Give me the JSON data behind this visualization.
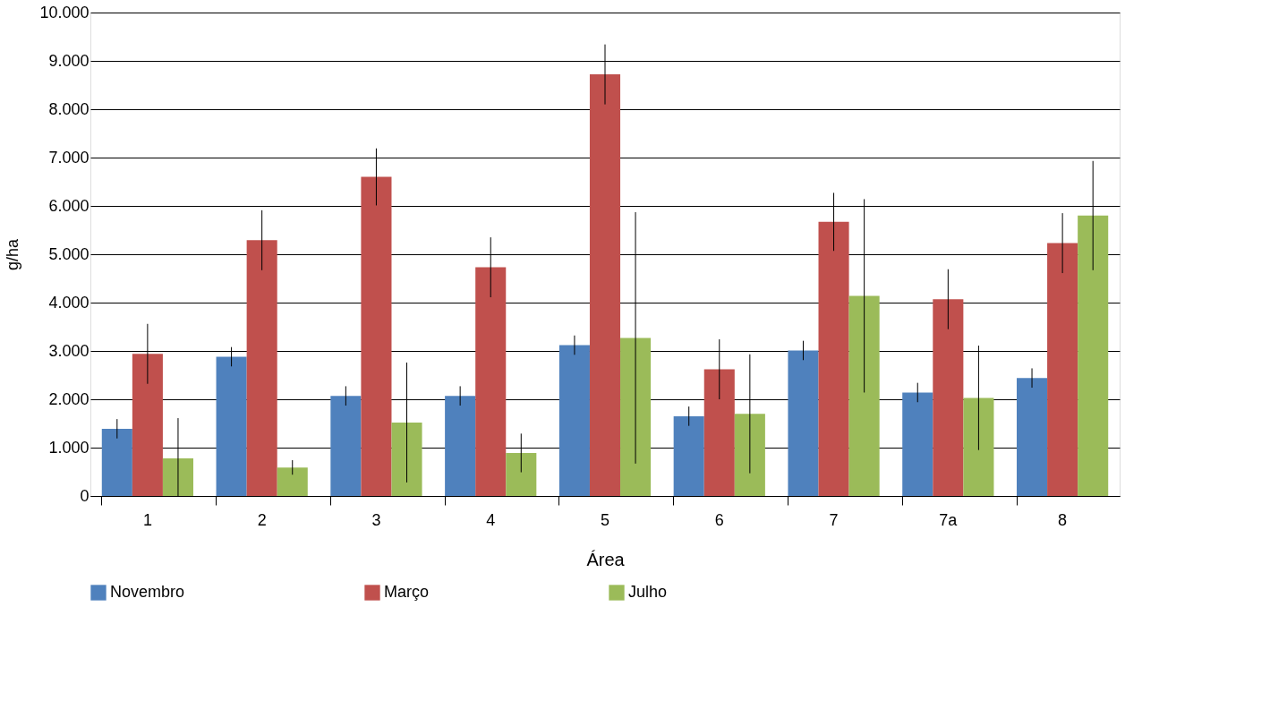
{
  "chart_data": {
    "type": "bar",
    "xlabel": "Área",
    "ylabel": "g/ha",
    "categories": [
      "1",
      "2",
      "3",
      "4",
      "5",
      "6",
      "7",
      "7a",
      "8"
    ],
    "series": [
      {
        "name": "Novembro",
        "color": "#4f81bd",
        "values": [
          1390,
          2880,
          2070,
          2070,
          3120,
          1650,
          3010,
          2140,
          2440
        ],
        "errors": [
          200,
          200,
          200,
          200,
          200,
          200,
          200,
          200,
          200
        ]
      },
      {
        "name": "Março",
        "color": "#c0504d",
        "values": [
          2940,
          5290,
          6600,
          4730,
          8720,
          2620,
          5670,
          4070,
          5230
        ],
        "errors": [
          620,
          620,
          590,
          620,
          620,
          620,
          600,
          620,
          620
        ]
      },
      {
        "name": "Julho",
        "color": "#9bbb59",
        "values": [
          780,
          590,
          1520,
          890,
          3270,
          1700,
          4140,
          2030,
          5800
        ],
        "errors": [
          [
            0,
            1610
          ],
          150,
          1240,
          400,
          2600,
          1230,
          2000,
          1080,
          1130
        ]
      }
    ],
    "ylim": [
      0,
      10000
    ],
    "yticks": [
      0,
      {
        "value": 1000,
        "label": "1.000"
      },
      {
        "value": 2000,
        "label": "2.000"
      },
      {
        "value": 3000,
        "label": "3.000"
      },
      {
        "value": 4000,
        "label": "4.000"
      },
      {
        "value": 5000,
        "label": "5.000"
      },
      {
        "value": 6000,
        "label": "6.000"
      },
      {
        "value": 7000,
        "label": "7.000"
      },
      {
        "value": 8000,
        "label": "8.000"
      },
      {
        "value": 9000,
        "label": "9.000"
      },
      {
        "value": 10000,
        "label": "10.000"
      }
    ],
    "grid": "y",
    "legend": "bottom"
  }
}
